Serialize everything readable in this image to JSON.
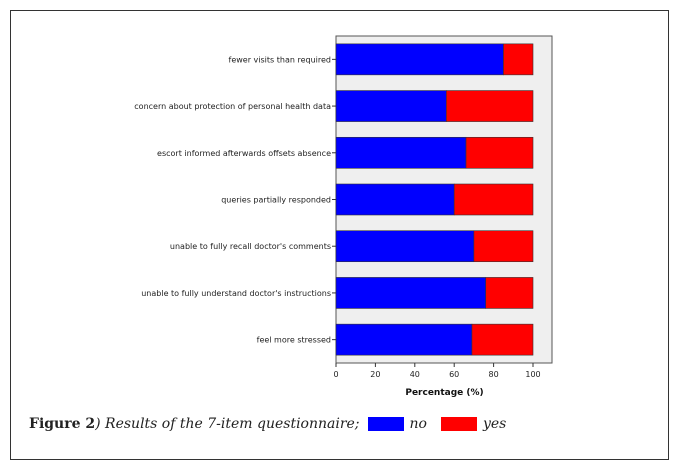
{
  "caption": {
    "label": "Figure 2",
    "text": ") Results of the 7-item questionnaire;",
    "legend": [
      {
        "name": "no",
        "color": "#0000ff"
      },
      {
        "name": "yes",
        "color": "#ff0000"
      }
    ]
  },
  "chart_data": {
    "type": "bar",
    "orientation": "horizontal",
    "stacked": true,
    "title": "",
    "xlabel": "Percentage (%)",
    "ylabel": "",
    "xlim": [
      0,
      100
    ],
    "xticks": [
      0,
      20,
      40,
      60,
      80,
      100
    ],
    "grid": false,
    "plot_background": "#efefef",
    "categories": [
      "fewer visits than required",
      "concern about protection of personal health data",
      "escort informed afterwards offsets absence",
      "queries partially responded",
      "unable to fully recall doctor's comments",
      "unable to fully understand doctor's instructions",
      "feel more stressed"
    ],
    "series": [
      {
        "name": "no",
        "color": "#0000ff",
        "values": [
          85,
          56,
          66,
          60,
          70,
          76,
          69
        ]
      },
      {
        "name": "yes",
        "color": "#ff0000",
        "values": [
          15,
          44,
          34,
          40,
          30,
          24,
          31
        ]
      }
    ]
  }
}
